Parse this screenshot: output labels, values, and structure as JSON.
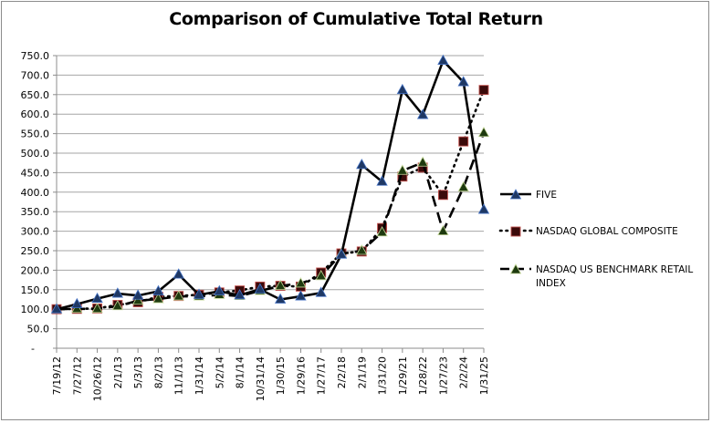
{
  "chart_data": {
    "type": "line",
    "title": "Comparison of Cumulative Total Return",
    "xlabel": "",
    "ylabel": "",
    "ylim": [
      0,
      750
    ],
    "yticks": [
      "-",
      "50.0",
      "100.0",
      "150.0",
      "200.0",
      "250.0",
      "300.0",
      "350.0",
      "400.0",
      "450.0",
      "500.0",
      "550.0",
      "600.0",
      "650.0",
      "700.0",
      "750.0"
    ],
    "grid": true,
    "legend_position": "right",
    "categories": [
      "7/19/12",
      "7/27/12",
      "10/26/12",
      "2/1/13",
      "5/3/13",
      "8/2/13",
      "11/1/13",
      "1/31/14",
      "5/2/14",
      "8/1/14",
      "10/31/14",
      "1/30/15",
      "1/29/16",
      "1/27/17",
      "2/2/18",
      "2/1/19",
      "1/31/20",
      "1/29/21",
      "1/28/22",
      "1/27/23",
      "2/2/24",
      "1/31/25"
    ],
    "series": [
      {
        "name": "FIVE",
        "line_style": "solid",
        "marker": "triangle",
        "marker_color": "#1f3864",
        "values": [
          100,
          113,
          127,
          140,
          135,
          146,
          189,
          137,
          146,
          136,
          151,
          125,
          133,
          142,
          240,
          470,
          427,
          662,
          598,
          737,
          682,
          355
        ]
      },
      {
        "name": "NASDAQ GLOBAL COMPOSITE",
        "line_style": "dotted",
        "marker": "square",
        "marker_color": "#3b0a0a",
        "values": [
          100,
          101,
          102,
          111,
          118,
          132,
          134,
          137,
          143,
          148,
          158,
          160,
          158,
          194,
          243,
          248,
          308,
          440,
          463,
          393,
          530,
          662
        ]
      },
      {
        "name": "NASDAQ US BENCHMARK RETAIL INDEX",
        "line_style": "dashed",
        "marker": "triangle",
        "marker_color": "#1e3a0f",
        "values": [
          100,
          101,
          101,
          108,
          122,
          126,
          133,
          133,
          137,
          134,
          147,
          160,
          166,
          185,
          242,
          250,
          297,
          455,
          476,
          300,
          412,
          552
        ]
      }
    ]
  },
  "legend": {
    "items": [
      {
        "label_lines": [
          "FIVE"
        ]
      },
      {
        "label_lines": [
          "NASDAQ GLOBAL COMPOSITE"
        ]
      },
      {
        "label_lines": [
          "NASDAQ US BENCHMARK RETAIL",
          "INDEX"
        ]
      }
    ]
  }
}
